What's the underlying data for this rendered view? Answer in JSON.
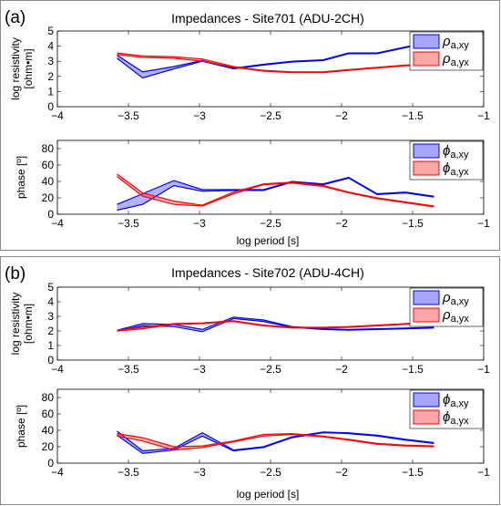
{
  "panels": [
    {
      "panel_label": "(a)",
      "title": "Impedances - Site701 (ADU-2CH)",
      "xlabel": "log period [s]",
      "legend_resistivity": [
        {
          "symbol": "ρ",
          "sub": "a,xy",
          "color": "#0000ff"
        },
        {
          "symbol": "ρ",
          "sub": "a,yx",
          "color": "#ff0000"
        }
      ],
      "legend_phase": [
        {
          "symbol": "ϕ",
          "sub": "a,xy",
          "color": "#0000ff"
        },
        {
          "symbol": "ϕ",
          "sub": "a,yx",
          "color": "#ff0000"
        }
      ]
    },
    {
      "panel_label": "(b)",
      "title": "Impedances - Site702 (ADU-4CH)",
      "xlabel": "log period [s]",
      "legend_resistivity": [
        {
          "symbol": "ρ",
          "sub": "a,xy",
          "color": "#0000ff"
        },
        {
          "symbol": "ρ",
          "sub": "a,yx",
          "color": "#ff0000"
        }
      ],
      "legend_phase": [
        {
          "symbol": "ϕ",
          "sub": "a,xy",
          "color": "#0000ff"
        },
        {
          "symbol": "ϕ",
          "sub": "a,yx",
          "color": "#ff0000"
        }
      ]
    }
  ],
  "chart_data": [
    {
      "type": "line",
      "panel": "(a)",
      "subplot": "resistivity",
      "title": "Impedances - Site701 (ADU-2CH)",
      "ylabel": "log resistivity [ohm•m]",
      "xlim": [
        -4,
        -1
      ],
      "ylim": [
        0,
        5
      ],
      "xticks": [
        -4,
        -3.5,
        -3,
        -2.5,
        -2,
        -1.5,
        -1
      ],
      "yticks": [
        0,
        1,
        2,
        3,
        4,
        5
      ],
      "legend": "right",
      "series": [
        {
          "name": "ρa,xy",
          "color": "#0000ff",
          "x": [
            -3.58,
            -3.4,
            -3.18,
            -2.98,
            -2.76,
            -2.55,
            -2.35,
            -2.13,
            -1.95,
            -1.75,
            -1.55,
            -1.35
          ],
          "lower": [
            3.2,
            1.9,
            2.5,
            3.0,
            2.5,
            2.75,
            2.95,
            3.05,
            3.5,
            3.5,
            3.9,
            4.3
          ],
          "upper": [
            3.4,
            2.3,
            2.65,
            3.05,
            2.55,
            2.8,
            3.0,
            3.1,
            3.55,
            3.55,
            3.95,
            4.35
          ]
        },
        {
          "name": "ρa,yx",
          "color": "#ff0000",
          "x": [
            -3.58,
            -3.4,
            -3.18,
            -2.98,
            -2.76,
            -2.55,
            -2.35,
            -2.13,
            -1.95,
            -1.75,
            -1.55,
            -1.35
          ],
          "lower": [
            3.45,
            3.25,
            3.2,
            3.0,
            2.6,
            2.35,
            2.25,
            2.25,
            2.4,
            2.55,
            2.7,
            2.75
          ],
          "upper": [
            3.55,
            3.35,
            3.3,
            3.15,
            2.65,
            2.4,
            2.3,
            2.3,
            2.45,
            2.6,
            2.75,
            2.85
          ]
        }
      ]
    },
    {
      "type": "line",
      "panel": "(a)",
      "subplot": "phase",
      "ylabel": "phase [º]",
      "xlabel": "log period [s]",
      "xlim": [
        -4,
        -1
      ],
      "ylim": [
        0,
        90
      ],
      "xticks": [
        -4,
        -3.5,
        -3,
        -2.5,
        -2,
        -1.5,
        -1
      ],
      "yticks": [
        0,
        20,
        40,
        60,
        80
      ],
      "legend": "right",
      "series": [
        {
          "name": "ϕa,xy",
          "color": "#0000ff",
          "x": [
            -3.58,
            -3.4,
            -3.18,
            -2.98,
            -2.76,
            -2.55,
            -2.35,
            -2.13,
            -1.95,
            -1.75,
            -1.55,
            -1.35
          ],
          "lower": [
            5,
            12,
            35,
            28,
            29,
            29,
            39,
            36,
            44,
            24,
            26,
            21
          ],
          "upper": [
            12,
            25,
            41,
            30,
            30,
            30,
            40,
            37,
            45,
            25,
            27,
            22
          ]
        },
        {
          "name": "ϕa,yx",
          "color": "#ff0000",
          "x": [
            -3.58,
            -3.4,
            -3.18,
            -2.98,
            -2.76,
            -2.55,
            -2.35,
            -2.13,
            -1.95,
            -1.75,
            -1.55,
            -1.35
          ],
          "lower": [
            46,
            22,
            12,
            10,
            25,
            36,
            38,
            34,
            26,
            19,
            14,
            9
          ],
          "upper": [
            49,
            26,
            16,
            11,
            27,
            37,
            39,
            35,
            27,
            20,
            15,
            10
          ]
        }
      ]
    },
    {
      "type": "line",
      "panel": "(b)",
      "subplot": "resistivity",
      "title": "Impedances - Site702 (ADU-4CH)",
      "ylabel": "log resistivity [ohm•m]",
      "xlim": [
        -4,
        -1
      ],
      "ylim": [
        0,
        5
      ],
      "xticks": [
        -4,
        -3.5,
        -3,
        -2.5,
        -2,
        -1.5,
        -1
      ],
      "yticks": [
        0,
        1,
        2,
        3,
        4,
        5
      ],
      "legend": "right",
      "series": [
        {
          "name": "ρa,xy",
          "color": "#0000ff",
          "x": [
            -3.58,
            -3.4,
            -3.18,
            -2.98,
            -2.76,
            -2.55,
            -2.35,
            -2.13,
            -1.95,
            -1.75,
            -1.55,
            -1.35
          ],
          "lower": [
            2.0,
            2.35,
            2.3,
            1.95,
            2.85,
            2.65,
            2.25,
            2.1,
            2.05,
            2.1,
            2.15,
            2.2
          ],
          "upper": [
            2.05,
            2.5,
            2.45,
            2.1,
            2.95,
            2.75,
            2.3,
            2.15,
            2.1,
            2.15,
            2.2,
            2.25
          ]
        },
        {
          "name": "ρa,yx",
          "color": "#ff0000",
          "x": [
            -3.58,
            -3.4,
            -3.18,
            -2.98,
            -2.76,
            -2.55,
            -2.35,
            -2.13,
            -1.95,
            -1.75,
            -1.55,
            -1.35
          ],
          "lower": [
            2.0,
            2.15,
            2.45,
            2.5,
            2.65,
            2.35,
            2.2,
            2.2,
            2.25,
            2.35,
            2.45,
            2.55
          ],
          "upper": [
            2.05,
            2.25,
            2.5,
            2.55,
            2.7,
            2.4,
            2.25,
            2.25,
            2.3,
            2.4,
            2.5,
            2.6
          ]
        }
      ]
    },
    {
      "type": "line",
      "panel": "(b)",
      "subplot": "phase",
      "ylabel": "phase [º]",
      "xlabel": "log period [s]",
      "xlim": [
        -4,
        -1
      ],
      "ylim": [
        0,
        90
      ],
      "xticks": [
        -4,
        -3.5,
        -3,
        -2.5,
        -2,
        -1.5,
        -1
      ],
      "yticks": [
        0,
        20,
        40,
        60,
        80
      ],
      "legend": "right",
      "series": [
        {
          "name": "ϕa,xy",
          "color": "#0000ff",
          "x": [
            -3.58,
            -3.4,
            -3.18,
            -2.98,
            -2.76,
            -2.55,
            -2.35,
            -2.13,
            -1.95,
            -1.75,
            -1.55,
            -1.35
          ],
          "lower": [
            34,
            12,
            16,
            33,
            15,
            19,
            31,
            37,
            36,
            33,
            28,
            24
          ],
          "upper": [
            39,
            15,
            18,
            37,
            16,
            20,
            32,
            38,
            37,
            34,
            29,
            25
          ]
        },
        {
          "name": "ϕa,yx",
          "color": "#ff0000",
          "x": [
            -3.58,
            -3.4,
            -3.18,
            -2.98,
            -2.76,
            -2.55,
            -2.35,
            -2.13,
            -1.95,
            -1.75,
            -1.55,
            -1.35
          ],
          "lower": [
            33,
            27,
            16,
            19,
            26,
            33,
            35,
            32,
            28,
            23,
            21,
            20
          ],
          "upper": [
            36,
            31,
            20,
            21,
            27,
            35,
            36,
            33,
            29,
            24,
            22,
            21
          ]
        }
      ]
    }
  ]
}
